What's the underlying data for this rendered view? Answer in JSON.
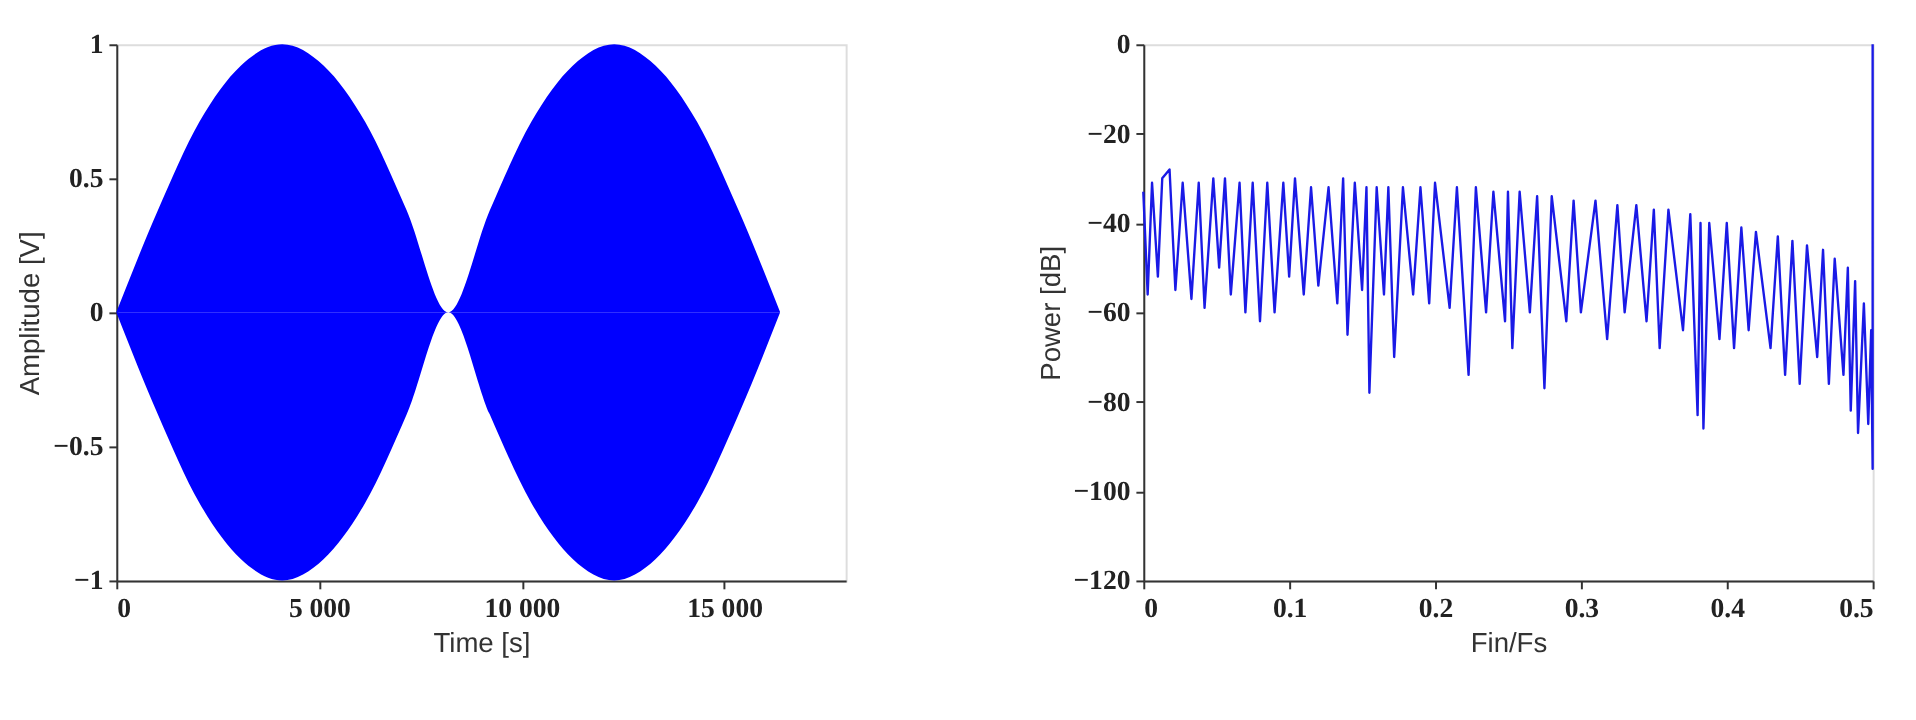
{
  "chart_data": [
    {
      "type": "area",
      "xlabel": "Time [s]",
      "ylabel": "Amplitude [V]",
      "xlim": [
        0,
        18000
      ],
      "ylim": [
        -1,
        1
      ],
      "xticks": [
        0,
        {
          "value": 5000,
          "label": "5 000"
        },
        {
          "value": 10000,
          "label": "10 000"
        },
        {
          "value": 15000,
          "label": "15 000"
        }
      ],
      "yticks": [
        -1,
        -0.5,
        0,
        0.5,
        1
      ],
      "grid": false,
      "x": [
        0,
        1024,
        2048,
        3072,
        4096,
        5120,
        6144,
        7168,
        8192,
        9216,
        10240,
        11264,
        12288,
        13312,
        14336,
        15360,
        16384
      ],
      "series": [
        {
          "color": "#0000ff",
          "values": [
            0,
            0.38,
            0.71,
            0.92,
            1,
            0.92,
            0.71,
            0.38,
            0,
            0.38,
            0.71,
            0.92,
            1,
            0.92,
            0.71,
            0.38,
            0
          ]
        },
        {
          "color": "#0000ff",
          "values": [
            0,
            -0.38,
            -0.71,
            -0.92,
            -1,
            -0.92,
            -0.71,
            -0.38,
            0,
            -0.38,
            -0.71,
            -0.92,
            -1,
            -0.92,
            -0.71,
            -0.38,
            0
          ]
        }
      ]
    },
    {
      "type": "line",
      "xlabel": "Fin/Fs",
      "ylabel": "Power [dB]",
      "xlim": [
        0,
        0.5
      ],
      "ylim": [
        -120,
        0
      ],
      "xticks": [
        0,
        0.1,
        0.2,
        0.3,
        0.4,
        0.5
      ],
      "yticks": [
        -120,
        -100,
        -80,
        -60,
        -40,
        -20,
        0
      ],
      "grid": false,
      "marker": "none",
      "line_style": "solid",
      "x": [
        0,
        0.003,
        0.006,
        0.01,
        0.013,
        0.018,
        0.022,
        0.027,
        0.033,
        0.038,
        0.042,
        0.048,
        0.052,
        0.056,
        0.06,
        0.066,
        0.07,
        0.075,
        0.08,
        0.085,
        0.09,
        0.096,
        0.1,
        0.104,
        0.11,
        0.115,
        0.12,
        0.127,
        0.133,
        0.137,
        0.14,
        0.145,
        0.15,
        0.153,
        0.155,
        0.16,
        0.165,
        0.168,
        0.172,
        0.178,
        0.185,
        0.19,
        0.196,
        0.2,
        0.21,
        0.215,
        0.223,
        0.228,
        0.235,
        0.24,
        0.248,
        0.25,
        0.253,
        0.258,
        0.265,
        0.27,
        0.275,
        0.28,
        0.29,
        0.295,
        0.3,
        0.31,
        0.318,
        0.325,
        0.33,
        0.338,
        0.345,
        0.35,
        0.354,
        0.36,
        0.37,
        0.375,
        0.38,
        0.382,
        0.384,
        0.388,
        0.395,
        0.4,
        0.405,
        0.41,
        0.415,
        0.42,
        0.43,
        0.435,
        0.44,
        0.445,
        0.45,
        0.455,
        0.462,
        0.466,
        0.47,
        0.474,
        0.48,
        0.483,
        0.485,
        0.488,
        0.49,
        0.494,
        0.497,
        0.499,
        0.5,
        0.5
      ],
      "series": [
        {
          "color": "#1a1ae6",
          "values": [
            -33,
            -56,
            -31,
            -52,
            -30,
            -28,
            -55,
            -31,
            -57,
            -31,
            -59,
            -30,
            -50,
            -30,
            -56,
            -31,
            -60,
            -31,
            -62,
            -31,
            -60,
            -31,
            -52,
            -30,
            -56,
            -32,
            -54,
            -32,
            -58,
            -30,
            -65,
            -31,
            -55,
            -32,
            -78,
            -32,
            -56,
            -32,
            -70,
            -32,
            -56,
            -32,
            -58,
            -31,
            -59,
            -32,
            -74,
            -32,
            -60,
            -33,
            -62,
            -33,
            -68,
            -33,
            -60,
            -34,
            -77,
            -34,
            -62,
            -35,
            -60,
            -35,
            -66,
            -36,
            -60,
            -36,
            -62,
            -37,
            -68,
            -37,
            -64,
            -38,
            -83,
            -40,
            -86,
            -40,
            -66,
            -40,
            -68,
            -41,
            -64,
            -42,
            -68,
            -43,
            -74,
            -44,
            -76,
            -45,
            -70,
            -46,
            -76,
            -48,
            -74,
            -50,
            -82,
            -53,
            -87,
            -58,
            -85,
            -64,
            -95,
            0
          ]
        }
      ]
    }
  ]
}
